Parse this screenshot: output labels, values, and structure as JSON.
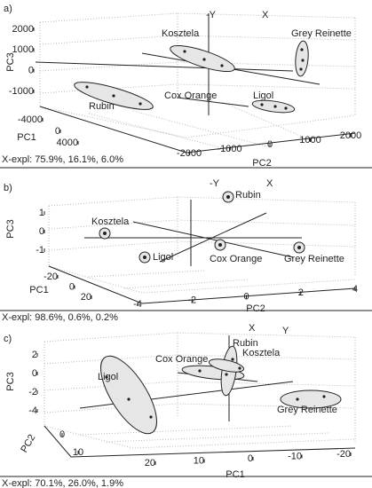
{
  "chart_data": [
    {
      "type": "scatter3d",
      "title": "a)",
      "xlabel": "PC1",
      "ylabel": "PC2",
      "zlabel": "PC3",
      "direction_labels": [
        "-Y",
        "X"
      ],
      "xticks": [
        -4000,
        0,
        4000
      ],
      "yticks": [
        -2000,
        -1000,
        0,
        1000,
        2000
      ],
      "zticks": [
        2000,
        1000,
        0,
        -1000
      ],
      "groups": [
        "Kosztela",
        "Grey Reinette",
        "Cox Orange",
        "Rubin",
        "Ligol"
      ],
      "explained": "X-expl: 75.9%, 16.1%, 6.0%"
    },
    {
      "type": "scatter3d",
      "title": "b)",
      "xlabel": "PC1",
      "ylabel": "PC2",
      "zlabel": "PC3",
      "direction_labels": [
        "-Y",
        "X"
      ],
      "xticks": [
        -20,
        0,
        20
      ],
      "yticks": [
        -4,
        -2,
        0,
        2,
        4
      ],
      "zticks": [
        1,
        0,
        -1
      ],
      "groups": [
        "Rubin",
        "Kosztela",
        "Ligol",
        "Cox Orange",
        "Grey Reinette"
      ],
      "explained": "X-expl: 98.6%, 0.6%, 0.2%"
    },
    {
      "type": "scatter3d",
      "title": "c)",
      "xlabel": "PC1",
      "ylabel": "PC2",
      "zlabel": "PC3",
      "direction_labels": [
        "X",
        "Y"
      ],
      "xticks": [
        20,
        10,
        0,
        -10,
        -20
      ],
      "yticks": [
        0,
        10
      ],
      "zticks": [
        2,
        0,
        -2,
        -4
      ],
      "groups": [
        "Rubin",
        "Kosztela",
        "Cox Orange",
        "Ligol",
        "Grey Reinette"
      ],
      "explained": "X-expl: 70.1%, 26.0%, 1.9%"
    }
  ]
}
